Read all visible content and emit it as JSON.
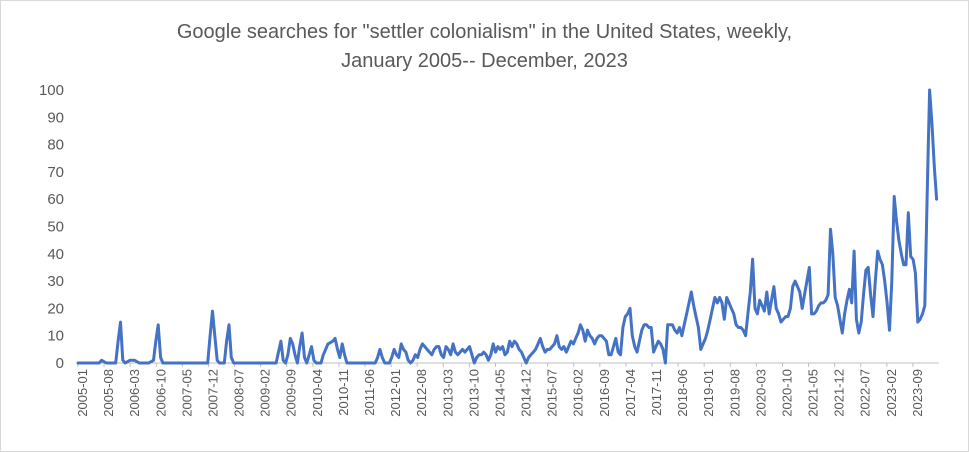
{
  "chart_data": {
    "type": "line",
    "title_line1": "Google searches for \"settler colonialism\" in the United States, weekly,",
    "title_line2": "January  2005-- December, 2023",
    "xlabel": "",
    "ylabel": "",
    "ylim": [
      0,
      100
    ],
    "yticks": [
      0,
      10,
      20,
      30,
      40,
      50,
      60,
      70,
      80,
      90,
      100
    ],
    "x_tick_labels": [
      "2005-01",
      "2005-08",
      "2006-03",
      "2006-10",
      "2007-05",
      "2007-12",
      "2008-07",
      "2009-02",
      "2009-09",
      "2010-04",
      "2010-11",
      "2011-06",
      "2012-01",
      "2012-08",
      "2013-03",
      "2013-10",
      "2014-05",
      "2014-12",
      "2015-07",
      "2016-02",
      "2016-09",
      "2017-04",
      "2017-11",
      "2018-06",
      "2019-01",
      "2019-08",
      "2020-03",
      "2020-10",
      "2021-05",
      "2021-12",
      "2022-07",
      "2023-02",
      "2023-09"
    ],
    "series": [
      {
        "name": "settler colonialism",
        "color": "#4472C4",
        "points": [
          [
            0,
            0
          ],
          [
            1,
            0
          ],
          [
            2,
            0
          ],
          [
            3,
            0
          ],
          [
            4,
            0
          ],
          [
            5,
            0
          ],
          [
            6,
            0
          ],
          [
            7,
            0
          ],
          [
            8,
            0
          ],
          [
            9,
            0
          ],
          [
            10,
            1
          ],
          [
            12,
            0
          ],
          [
            13,
            0
          ],
          [
            14,
            0
          ],
          [
            15,
            0
          ],
          [
            16,
            0
          ],
          [
            17,
            8
          ],
          [
            18,
            15
          ],
          [
            19,
            1
          ],
          [
            20,
            0
          ],
          [
            22,
            1
          ],
          [
            24,
            1
          ],
          [
            26,
            0
          ],
          [
            28,
            0
          ],
          [
            30,
            0
          ],
          [
            32,
            1
          ],
          [
            33,
            8
          ],
          [
            34,
            14
          ],
          [
            35,
            2
          ],
          [
            36,
            0
          ],
          [
            38,
            0
          ],
          [
            42,
            0
          ],
          [
            46,
            0
          ],
          [
            50,
            0
          ],
          [
            53,
            0
          ],
          [
            55,
            0
          ],
          [
            56,
            10
          ],
          [
            57,
            19
          ],
          [
            58,
            10
          ],
          [
            59,
            1
          ],
          [
            60,
            0
          ],
          [
            62,
            0
          ],
          [
            63,
            8
          ],
          [
            64,
            14
          ],
          [
            65,
            2
          ],
          [
            66,
            0
          ],
          [
            70,
            0
          ],
          [
            74,
            0
          ],
          [
            78,
            0
          ],
          [
            82,
            0
          ],
          [
            84,
            0
          ],
          [
            85,
            4
          ],
          [
            86,
            8
          ],
          [
            87,
            1
          ],
          [
            88,
            0
          ],
          [
            89,
            3
          ],
          [
            90,
            9
          ],
          [
            91,
            7
          ],
          [
            92,
            3
          ],
          [
            93,
            0
          ],
          [
            94,
            6
          ],
          [
            95,
            11
          ],
          [
            96,
            2
          ],
          [
            97,
            0
          ],
          [
            98,
            3
          ],
          [
            99,
            6
          ],
          [
            100,
            1
          ],
          [
            101,
            0
          ],
          [
            102,
            0
          ],
          [
            103,
            0
          ],
          [
            104,
            3
          ],
          [
            106,
            7
          ],
          [
            108,
            8
          ],
          [
            109,
            9
          ],
          [
            110,
            5
          ],
          [
            111,
            2
          ],
          [
            112,
            7
          ],
          [
            113,
            3
          ],
          [
            114,
            0
          ],
          [
            116,
            0
          ],
          [
            120,
            0
          ],
          [
            124,
            0
          ],
          [
            126,
            0
          ],
          [
            127,
            2
          ],
          [
            128,
            5
          ],
          [
            129,
            2
          ],
          [
            130,
            0
          ],
          [
            132,
            0
          ],
          [
            133,
            2
          ],
          [
            134,
            5
          ],
          [
            135,
            3
          ],
          [
            136,
            2
          ],
          [
            137,
            7
          ],
          [
            138,
            5
          ],
          [
            139,
            4
          ],
          [
            140,
            1
          ],
          [
            141,
            0
          ],
          [
            142,
            1
          ],
          [
            143,
            3
          ],
          [
            144,
            2
          ],
          [
            145,
            5
          ],
          [
            146,
            7
          ],
          [
            147,
            6
          ],
          [
            148,
            5
          ],
          [
            149,
            4
          ],
          [
            150,
            3
          ],
          [
            151,
            5
          ],
          [
            152,
            6
          ],
          [
            153,
            6
          ],
          [
            154,
            3
          ],
          [
            155,
            2
          ],
          [
            156,
            6
          ],
          [
            157,
            5
          ],
          [
            158,
            3
          ],
          [
            159,
            7
          ],
          [
            160,
            4
          ],
          [
            161,
            3
          ],
          [
            162,
            4
          ],
          [
            163,
            5
          ],
          [
            164,
            4
          ],
          [
            165,
            5
          ],
          [
            166,
            6
          ],
          [
            167,
            3
          ],
          [
            168,
            0
          ],
          [
            169,
            2
          ],
          [
            170,
            3
          ],
          [
            171,
            3
          ],
          [
            172,
            4
          ],
          [
            173,
            3
          ],
          [
            174,
            1
          ],
          [
            175,
            3
          ],
          [
            176,
            7
          ],
          [
            177,
            4
          ],
          [
            178,
            6
          ],
          [
            179,
            5
          ],
          [
            180,
            6
          ],
          [
            181,
            3
          ],
          [
            182,
            4
          ],
          [
            183,
            8
          ],
          [
            184,
            6
          ],
          [
            185,
            8
          ],
          [
            186,
            7
          ],
          [
            187,
            5
          ],
          [
            188,
            4
          ],
          [
            189,
            2
          ],
          [
            190,
            0
          ],
          [
            191,
            2
          ],
          [
            192,
            3
          ],
          [
            193,
            4
          ],
          [
            194,
            5
          ],
          [
            195,
            7
          ],
          [
            196,
            9
          ],
          [
            197,
            6
          ],
          [
            198,
            4
          ],
          [
            199,
            5
          ],
          [
            200,
            5
          ],
          [
            201,
            6
          ],
          [
            202,
            7
          ],
          [
            203,
            10
          ],
          [
            204,
            6
          ],
          [
            205,
            5
          ],
          [
            206,
            6
          ],
          [
            207,
            4
          ],
          [
            208,
            6
          ],
          [
            209,
            8
          ],
          [
            210,
            7
          ],
          [
            211,
            9
          ],
          [
            212,
            11
          ],
          [
            213,
            14
          ],
          [
            214,
            12
          ],
          [
            215,
            8
          ],
          [
            216,
            12
          ],
          [
            217,
            10
          ],
          [
            218,
            9
          ],
          [
            219,
            7
          ],
          [
            220,
            9
          ],
          [
            221,
            10
          ],
          [
            222,
            10
          ],
          [
            223,
            9
          ],
          [
            224,
            8
          ],
          [
            225,
            3
          ],
          [
            226,
            3
          ],
          [
            227,
            6
          ],
          [
            228,
            9
          ],
          [
            229,
            4
          ],
          [
            230,
            3
          ],
          [
            231,
            13
          ],
          [
            232,
            17
          ],
          [
            233,
            18
          ],
          [
            234,
            20
          ],
          [
            235,
            10
          ],
          [
            236,
            6
          ],
          [
            237,
            4
          ],
          [
            238,
            8
          ],
          [
            239,
            12
          ],
          [
            240,
            14
          ],
          [
            241,
            14
          ],
          [
            242,
            13
          ],
          [
            243,
            13
          ],
          [
            244,
            4
          ],
          [
            245,
            6
          ],
          [
            246,
            8
          ],
          [
            247,
            7
          ],
          [
            248,
            5
          ],
          [
            249,
            0
          ],
          [
            250,
            14
          ],
          [
            251,
            14
          ],
          [
            252,
            14
          ],
          [
            253,
            12
          ],
          [
            254,
            11
          ],
          [
            255,
            13
          ],
          [
            256,
            10
          ],
          [
            257,
            14
          ],
          [
            258,
            18
          ],
          [
            259,
            22
          ],
          [
            260,
            26
          ],
          [
            261,
            21
          ],
          [
            262,
            17
          ],
          [
            263,
            13
          ],
          [
            264,
            5
          ],
          [
            265,
            7
          ],
          [
            266,
            9
          ],
          [
            267,
            12
          ],
          [
            268,
            16
          ],
          [
            269,
            20
          ],
          [
            270,
            24
          ],
          [
            271,
            22
          ],
          [
            272,
            24
          ],
          [
            273,
            22
          ],
          [
            274,
            16
          ],
          [
            275,
            24
          ],
          [
            276,
            22
          ],
          [
            277,
            20
          ],
          [
            278,
            18
          ],
          [
            279,
            14
          ],
          [
            280,
            13
          ],
          [
            281,
            13
          ],
          [
            282,
            12
          ],
          [
            283,
            10
          ],
          [
            284,
            18
          ],
          [
            285,
            26
          ],
          [
            286,
            38
          ],
          [
            287,
            20
          ],
          [
            288,
            18
          ],
          [
            289,
            23
          ],
          [
            290,
            21
          ],
          [
            291,
            19
          ],
          [
            292,
            26
          ],
          [
            293,
            18
          ],
          [
            294,
            23
          ],
          [
            295,
            28
          ],
          [
            296,
            20
          ],
          [
            297,
            18
          ],
          [
            298,
            15
          ],
          [
            299,
            16
          ],
          [
            300,
            17
          ],
          [
            301,
            17
          ],
          [
            302,
            20
          ],
          [
            303,
            28
          ],
          [
            304,
            30
          ],
          [
            305,
            28
          ],
          [
            306,
            26
          ],
          [
            307,
            20
          ],
          [
            308,
            25
          ],
          [
            309,
            30
          ],
          [
            310,
            35
          ],
          [
            311,
            18
          ],
          [
            312,
            18
          ],
          [
            313,
            19
          ],
          [
            314,
            21
          ],
          [
            315,
            22
          ],
          [
            316,
            22
          ],
          [
            317,
            23
          ],
          [
            318,
            25
          ],
          [
            319,
            49
          ],
          [
            320,
            40
          ],
          [
            321,
            24
          ],
          [
            322,
            21
          ],
          [
            323,
            16
          ],
          [
            324,
            11
          ],
          [
            325,
            18
          ],
          [
            326,
            23
          ],
          [
            327,
            27
          ],
          [
            328,
            22
          ],
          [
            329,
            41
          ],
          [
            330,
            16
          ],
          [
            331,
            11
          ],
          [
            332,
            15
          ],
          [
            333,
            25
          ],
          [
            334,
            34
          ],
          [
            335,
            35
          ],
          [
            336,
            25
          ],
          [
            337,
            17
          ],
          [
            338,
            30
          ],
          [
            339,
            41
          ],
          [
            340,
            38
          ],
          [
            341,
            36
          ],
          [
            342,
            30
          ],
          [
            343,
            22
          ],
          [
            344,
            12
          ],
          [
            345,
            30
          ],
          [
            346,
            61
          ],
          [
            347,
            52
          ],
          [
            348,
            45
          ],
          [
            349,
            40
          ],
          [
            350,
            36
          ],
          [
            351,
            36
          ],
          [
            352,
            55
          ],
          [
            353,
            39
          ],
          [
            354,
            38
          ],
          [
            355,
            33
          ],
          [
            356,
            15
          ],
          [
            357,
            16
          ],
          [
            358,
            18
          ],
          [
            359,
            21
          ],
          [
            360,
            62
          ],
          [
            361,
            100
          ],
          [
            362,
            88
          ],
          [
            363,
            72
          ],
          [
            364,
            60
          ]
        ]
      }
    ]
  }
}
